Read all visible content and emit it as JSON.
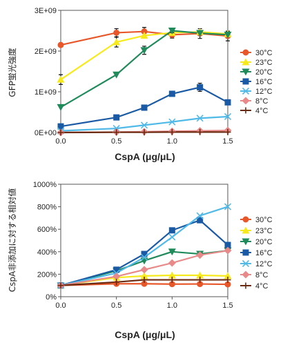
{
  "chart_data": [
    {
      "type": "line",
      "xlabel": "CspA (μg/μL)",
      "ylabel": "GFP蛍光強度",
      "x": [
        0,
        0.5,
        0.75,
        1.0,
        1.25,
        1.5
      ],
      "x_ticks": [
        "0.0",
        "0.5",
        "1.0",
        "1.5"
      ],
      "x_tick_values": [
        0,
        0.5,
        1.0,
        1.5
      ],
      "xlim": [
        0,
        1.5
      ],
      "ylim": [
        0,
        3000000000
      ],
      "y_ticks": [
        "0E+00",
        "1E+09",
        "2E+09",
        "3E+09"
      ],
      "y_tick_values": [
        0,
        1000000000,
        2000000000,
        3000000000
      ],
      "grid": false,
      "legend_position": "right",
      "series": [
        {
          "name": "30°C",
          "color": "#e8572a",
          "marker": "circle",
          "values": [
            2150000000,
            2450000000,
            2480000000,
            2400000000,
            2430000000,
            2370000000
          ],
          "errors": [
            0,
            100000000,
            100000000,
            80000000,
            120000000,
            120000000
          ]
        },
        {
          "name": "23°C",
          "color": "#f7ea1c",
          "marker": "triangle-up",
          "values": [
            1300000000,
            2220000000,
            2380000000,
            2450000000,
            2470000000,
            2420000000
          ],
          "errors": [
            120000000,
            120000000,
            0,
            0,
            0,
            0
          ]
        },
        {
          "name": "20°C",
          "color": "#1f8a5a",
          "marker": "triangle-down",
          "values": [
            620000000,
            1420000000,
            2020000000,
            2500000000,
            2440000000,
            2400000000
          ],
          "errors": [
            0,
            0,
            100000000,
            50000000,
            0,
            0
          ]
        },
        {
          "name": "16°C",
          "color": "#1a5aa5",
          "marker": "square",
          "values": [
            150000000,
            370000000,
            610000000,
            950000000,
            1110000000,
            740000000
          ],
          "errors": [
            0,
            0,
            0,
            50000000,
            100000000,
            50000000
          ]
        },
        {
          "name": "12°C",
          "color": "#4fb9e8",
          "marker": "x",
          "values": [
            40000000,
            100000000,
            180000000,
            260000000,
            350000000,
            390000000
          ],
          "errors": [
            0,
            0,
            0,
            0,
            0,
            0
          ]
        },
        {
          "name": "8°C",
          "color": "#e88a8a",
          "marker": "diamond",
          "values": [
            0,
            10000000,
            20000000,
            30000000,
            40000000,
            50000000
          ],
          "errors": [
            0,
            0,
            0,
            0,
            0,
            0
          ]
        },
        {
          "name": "4°C",
          "color": "#6b2a10",
          "marker": "plus",
          "values": [
            0,
            5000000,
            5000000,
            10000000,
            10000000,
            10000000
          ],
          "errors": [
            0,
            0,
            0,
            0,
            0,
            0
          ]
        }
      ]
    },
    {
      "type": "line",
      "xlabel": "CspA (μg/μL)",
      "ylabel": "CspA非添加に対する相対値",
      "x": [
        0,
        0.5,
        0.75,
        1.0,
        1.25,
        1.5
      ],
      "x_ticks": [
        "0.0",
        "0.5",
        "1.0",
        "1.5"
      ],
      "x_tick_values": [
        0,
        0.5,
        1.0,
        1.5
      ],
      "xlim": [
        0,
        1.5
      ],
      "ylim": [
        0,
        1000
      ],
      "y_ticks": [
        "0%",
        "200%",
        "400%",
        "600%",
        "800%",
        "1000%"
      ],
      "y_tick_values": [
        0,
        200,
        400,
        600,
        800,
        1000
      ],
      "grid": false,
      "legend_position": "right",
      "series": [
        {
          "name": "30°C",
          "color": "#e8572a",
          "marker": "circle",
          "values": [
            100,
            115,
            115,
            112,
            113,
            110
          ]
        },
        {
          "name": "23°C",
          "color": "#f7ea1c",
          "marker": "triangle-up",
          "values": [
            100,
            170,
            185,
            190,
            190,
            185
          ]
        },
        {
          "name": "20°C",
          "color": "#1f8a5a",
          "marker": "triangle-down",
          "values": [
            100,
            230,
            320,
            400,
            380,
            410
          ]
        },
        {
          "name": "16°C",
          "color": "#1a5aa5",
          "marker": "square",
          "values": [
            100,
            240,
            380,
            590,
            680,
            460
          ]
        },
        {
          "name": "12°C",
          "color": "#4fb9e8",
          "marker": "x",
          "values": [
            100,
            210,
            350,
            530,
            720,
            800
          ]
        },
        {
          "name": "8°C",
          "color": "#e88a8a",
          "marker": "diamond",
          "values": [
            100,
            180,
            240,
            300,
            370,
            410
          ]
        },
        {
          "name": "4°C",
          "color": "#6b2a10",
          "marker": "plus",
          "values": [
            100,
            130,
            150,
            150,
            150,
            150
          ]
        }
      ]
    }
  ]
}
